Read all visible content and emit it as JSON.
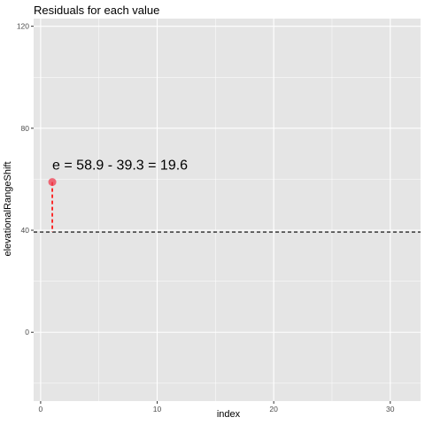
{
  "chart_data": {
    "type": "scatter",
    "title": "Residuals for each value",
    "xlabel": "index",
    "ylabel": "elevationalRangeShift",
    "xlim": [
      -0.6,
      32.6
    ],
    "ylim": [
      -27,
      123
    ],
    "x_ticks": [
      0,
      10,
      20,
      30
    ],
    "y_ticks": [
      0,
      40,
      80,
      120
    ],
    "grid": true,
    "legend": "none",
    "points": [
      {
        "x": 1,
        "y": 58.9
      }
    ],
    "mean_line": {
      "y": 39.3,
      "style": "dashed",
      "color": "#000000"
    },
    "residual_segments": [
      {
        "x": 1,
        "y_from": 58.9,
        "y_to": 39.3,
        "style": "dashed",
        "color": "#ff0000"
      }
    ],
    "annotation": {
      "text": "e = 58.9 - 39.3 = 19.6",
      "x": 1,
      "y": 58.9
    },
    "colors": {
      "panel_background": "#e5e5e5",
      "grid_major": "#ffffff",
      "point": "#ef3b4d",
      "residual": "#ff0000",
      "mean_line": "#000000"
    }
  }
}
